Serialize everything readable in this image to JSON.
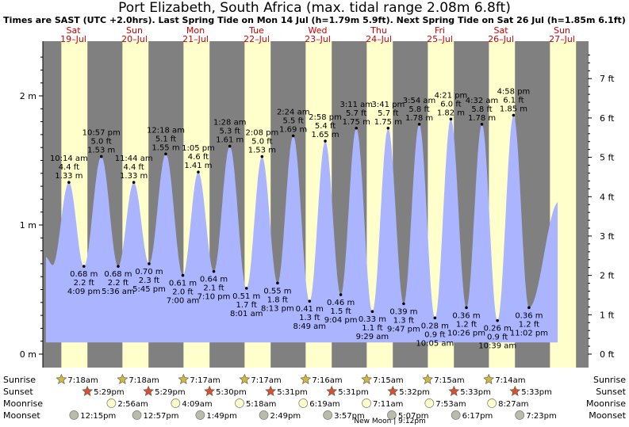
{
  "title": "Port Elizabeth, South Africa (max. tidal range 2.08m 6.8ft)",
  "subtitle": "Times are SAST (UTC +2.0hrs). Last Spring Tide on Mon 14 Jul (h=1.79m 5.9ft). Next Spring Tide on Sat 26 Jul (h=1.85m 6.1ft)",
  "colors": {
    "night": "#808080",
    "day": "#ffffcc",
    "water": "#aab4ff",
    "dayname": "#cc0000"
  },
  "chart_data": {
    "type": "area",
    "title": "Port Elizabeth, South Africa (max. tidal range 2.08m 6.8ft)",
    "ylim_m": [
      -0.08,
      2.38
    ],
    "ylim_ft": [
      -0.26,
      7.8
    ],
    "yticks_m": [
      "0 m",
      "1 m",
      "2 m"
    ],
    "yticks_ft": [
      "0 ft",
      "1 ft",
      "2 ft",
      "3 ft",
      "4 ft",
      "5 ft",
      "6 ft",
      "7 ft"
    ],
    "days": [
      {
        "dow": "Sat",
        "date": "19–Jul"
      },
      {
        "dow": "Sun",
        "date": "20–Jul"
      },
      {
        "dow": "Mon",
        "date": "21–Jul"
      },
      {
        "dow": "Tue",
        "date": "22–Jul"
      },
      {
        "dow": "Wed",
        "date": "23–Jul"
      },
      {
        "dow": "Thu",
        "date": "24–Jul"
      },
      {
        "dow": "Fri",
        "date": "25–Jul"
      },
      {
        "dow": "Sat",
        "date": "26–Jul"
      },
      {
        "dow": "Sun",
        "date": "27–Jul"
      }
    ],
    "tides": [
      {
        "t": 0.427,
        "h": 1.33,
        "type": "high",
        "time": "10:14 am",
        "ft": "4.4 ft",
        "m": "1.33 m"
      },
      {
        "t": 0.672,
        "h": 0.68,
        "type": "low",
        "time": "4:09 pm",
        "ft": "2.2 ft",
        "m": "0.68 m"
      },
      {
        "t": 0.957,
        "h": 1.53,
        "type": "high",
        "time": "10:57 pm",
        "ft": "5.0 ft",
        "m": "1.53 m"
      },
      {
        "t": 1.233,
        "h": 0.68,
        "type": "low",
        "time": "5:36 am",
        "ft": "2.2 ft",
        "m": "0.68 m"
      },
      {
        "t": 1.489,
        "h": 1.33,
        "type": "high",
        "time": "11:44 am",
        "ft": "4.4 ft",
        "m": "1.33 m"
      },
      {
        "t": 1.74,
        "h": 0.7,
        "type": "low",
        "time": "5:45 pm",
        "ft": "2.3 ft",
        "m": "0.70 m"
      },
      {
        "t": 2.013,
        "h": 1.55,
        "type": "high",
        "time": "12:18 am",
        "ft": "5.1 ft",
        "m": "1.55 m"
      },
      {
        "t": 2.292,
        "h": 0.61,
        "type": "low",
        "time": "7:00 am",
        "ft": "2.0 ft",
        "m": "0.61 m"
      },
      {
        "t": 2.545,
        "h": 1.41,
        "type": "high",
        "time": "1:05 pm",
        "ft": "4.6 ft",
        "m": "1.41 m"
      },
      {
        "t": 2.799,
        "h": 0.64,
        "type": "low",
        "time": "7:10 pm",
        "ft": "2.1 ft",
        "m": "0.64 m"
      },
      {
        "t": 3.061,
        "h": 1.61,
        "type": "high",
        "time": "1:28 am",
        "ft": "5.3 ft",
        "m": "1.61 m"
      },
      {
        "t": 3.334,
        "h": 0.51,
        "type": "low",
        "time": "8:01 am",
        "ft": "1.7 ft",
        "m": "0.51 m"
      },
      {
        "t": 3.589,
        "h": 1.53,
        "type": "high",
        "time": "2:08 pm",
        "ft": "5.0 ft",
        "m": "1.53 m"
      },
      {
        "t": 3.843,
        "h": 0.55,
        "type": "low",
        "time": "8:13 pm",
        "ft": "1.8 ft",
        "m": "0.55 m"
      },
      {
        "t": 4.1,
        "h": 1.69,
        "type": "high",
        "time": "2:24 am",
        "ft": "5.5 ft",
        "m": "1.69 m"
      },
      {
        "t": 4.367,
        "h": 0.41,
        "type": "low",
        "time": "8:49 am",
        "ft": "1.3 ft",
        "m": "0.41 m"
      },
      {
        "t": 4.624,
        "h": 1.65,
        "type": "high",
        "time": "2:58 pm",
        "ft": "5.4 ft",
        "m": "1.65 m"
      },
      {
        "t": 4.878,
        "h": 0.46,
        "type": "low",
        "time": "9:04 pm",
        "ft": "1.5 ft",
        "m": "0.46 m"
      },
      {
        "t": 5.133,
        "h": 1.75,
        "type": "high",
        "time": "3:11 am",
        "ft": "5.7 ft",
        "m": "1.75 m"
      },
      {
        "t": 5.395,
        "h": 0.33,
        "type": "low",
        "time": "9:29 am",
        "ft": "1.1 ft",
        "m": "0.33 m"
      },
      {
        "t": 5.654,
        "h": 1.75,
        "type": "high",
        "time": "3:41 pm",
        "ft": "5.7 ft",
        "m": "1.75 m"
      },
      {
        "t": 5.908,
        "h": 0.39,
        "type": "low",
        "time": "9:47 pm",
        "ft": "1.3 ft",
        "m": "0.39 m"
      },
      {
        "t": 6.163,
        "h": 1.78,
        "type": "high",
        "time": "3:54 am",
        "ft": "5.8 ft",
        "m": "1.78 m"
      },
      {
        "t": 6.42,
        "h": 0.28,
        "type": "low",
        "time": "10:05 am",
        "ft": "0.9 ft",
        "m": "0.28 m"
      },
      {
        "t": 6.681,
        "h": 1.82,
        "type": "high",
        "time": "4:21 pm",
        "ft": "6.0 ft",
        "m": "1.82 m"
      },
      {
        "t": 6.935,
        "h": 0.36,
        "type": "low",
        "time": "10:26 pm",
        "ft": "1.2 ft",
        "m": "0.36 m"
      },
      {
        "t": 7.189,
        "h": 1.78,
        "type": "high",
        "time": "4:32 am",
        "ft": "5.8 ft",
        "m": "1.78 m"
      },
      {
        "t": 7.444,
        "h": 0.26,
        "type": "low",
        "time": "10:39 am",
        "ft": "0.9 ft",
        "m": "0.26 m"
      },
      {
        "t": 7.707,
        "h": 1.85,
        "type": "high",
        "time": "4:58 pm",
        "ft": "6.1 ft",
        "m": "1.85 m"
      },
      {
        "t": 7.96,
        "h": 0.36,
        "type": "low",
        "time": "11:02 pm",
        "ft": "1.2 ft",
        "m": "0.36 m"
      }
    ],
    "astro_labels": [
      "Sunrise",
      "Sunset",
      "Moonrise",
      "Moonset"
    ],
    "sunrise": [
      "7:18am",
      "7:18am",
      "7:17am",
      "7:17am",
      "7:16am",
      "7:15am",
      "7:15am",
      "7:14am"
    ],
    "sunset": [
      "5:29pm",
      "5:29pm",
      "5:30pm",
      "5:31pm",
      "5:31pm",
      "5:32pm",
      "5:33pm",
      "5:33pm"
    ],
    "moonrise": [
      "2:56am",
      "4:09am",
      "5:18am",
      "6:19am",
      "7:11am",
      "7:53am",
      "8:27am"
    ],
    "moonset": [
      "12:15pm",
      "12:57pm",
      "1:49pm",
      "2:49pm",
      "3:57pm",
      "5:07pm",
      "6:17pm",
      "7:23pm"
    ],
    "moon_phase": "New Moon | 9:12pm"
  }
}
